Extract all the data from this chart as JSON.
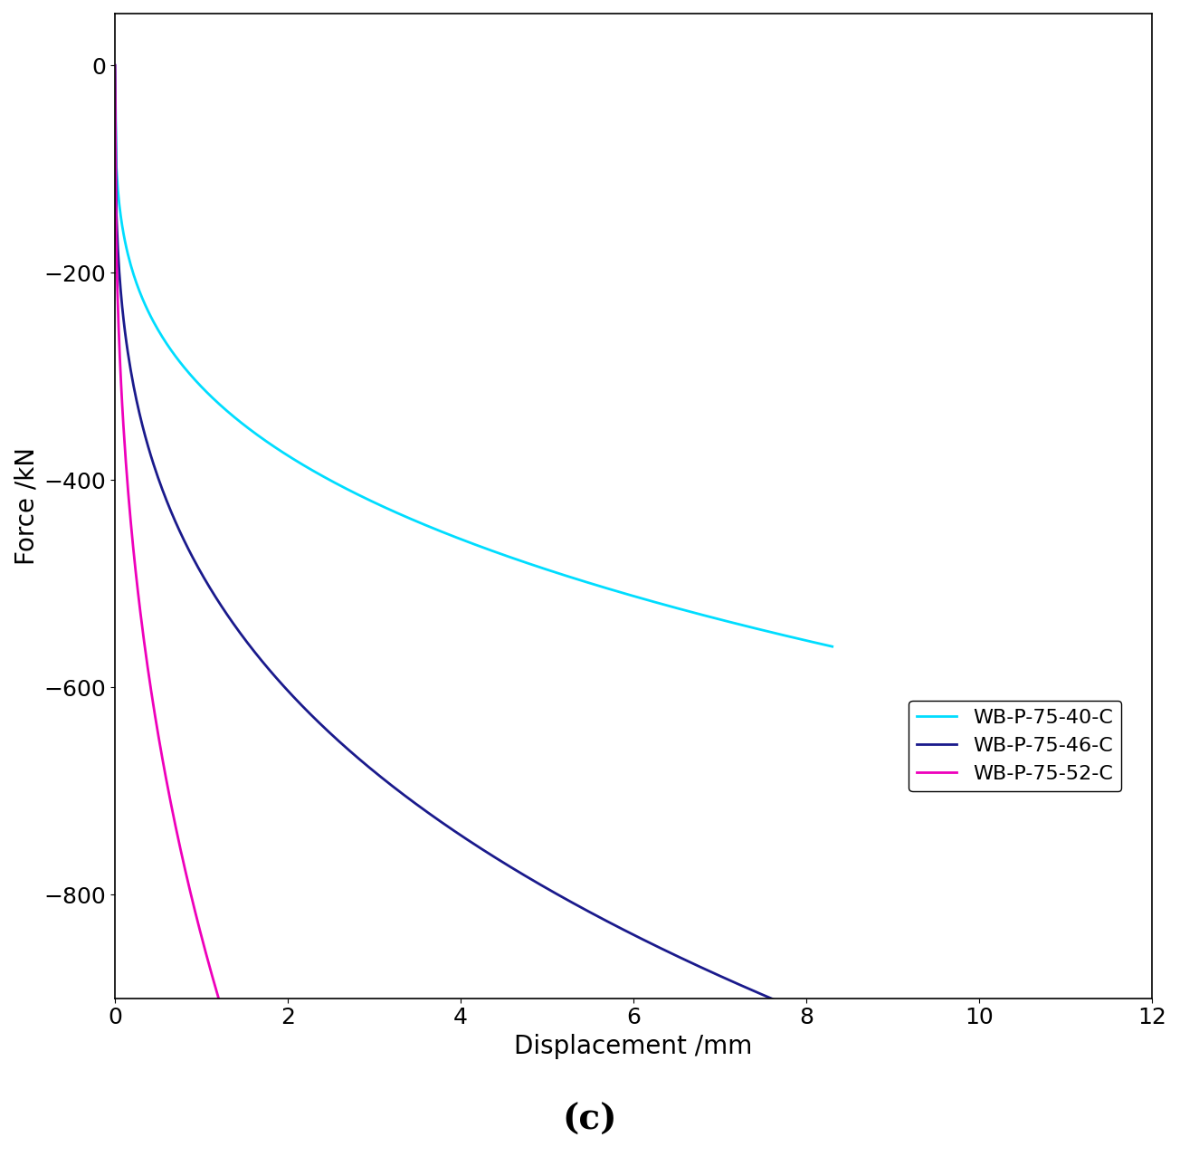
{
  "title": "",
  "xlabel": "Displacement /mm",
  "ylabel": "Force /kN",
  "subtitle": "(c)",
  "xlim": [
    0,
    12
  ],
  "ylim": [
    -900,
    50
  ],
  "yticks": [
    0,
    -200,
    -400,
    -600,
    -800
  ],
  "xticks": [
    0,
    2,
    4,
    6,
    8,
    10,
    12
  ],
  "series": [
    {
      "label": "WB-P-75-40-C",
      "color": "#00DDFF",
      "power_a": 310,
      "power_b": 0.28,
      "x_end": 8.3
    },
    {
      "label": "WB-P-75-46-C",
      "color": "#1a1a8c",
      "power_a": 490,
      "power_b": 0.3,
      "x_end": 8.3
    },
    {
      "label": "WB-P-75-52-C",
      "color": "#EE00BB",
      "power_a": 840,
      "power_b": 0.38,
      "x_end": 7.0
    }
  ],
  "linewidth": 2.0,
  "background_color": "#ffffff",
  "axes_color": "#000000",
  "subtitle_fontsize": 28,
  "axis_label_fontsize": 20,
  "tick_fontsize": 18,
  "legend_fontsize": 16
}
